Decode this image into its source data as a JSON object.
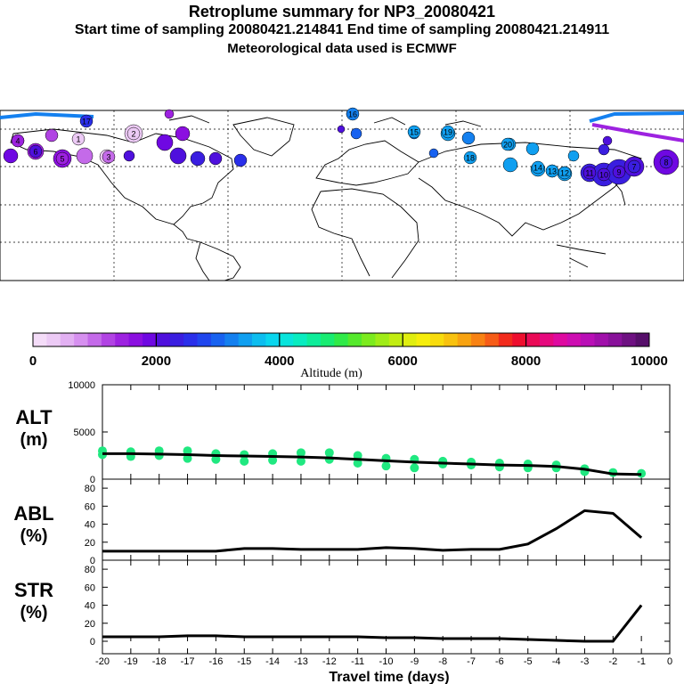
{
  "header": {
    "title": "Retroplume summary for NP3_20080421",
    "sampling": "Start time of sampling 20080421.214841      End time of sampling 20080421.214911",
    "met": "Meteorological data used is ECMWF"
  },
  "colorbar": {
    "tick_labels": [
      "0",
      "2000",
      "4000",
      "6000",
      "8000",
      "10000"
    ],
    "label": "Altitude (m)",
    "colors": [
      "#f4dcf8",
      "#eccaf5",
      "#e2b0f2",
      "#d690ef",
      "#c46ae9",
      "#b143e3",
      "#9d22e0",
      "#8b0fe0",
      "#6f08e2",
      "#4f10dd",
      "#3a1ee0",
      "#2a2fea",
      "#2046ee",
      "#1862f0",
      "#1480ef",
      "#109ff0",
      "#0dbdef",
      "#0ad6ee",
      "#08e4dc",
      "#08ecc0",
      "#0ded9a",
      "#18ec72",
      "#30ea48",
      "#55e92c",
      "#7ceb1e",
      "#a0ec17",
      "#c2ed12",
      "#e0ee0f",
      "#f6ee0c",
      "#f8dc0d",
      "#f8c20f",
      "#f8a311",
      "#f88213",
      "#f65c17",
      "#f22b1c",
      "#ee0e2e",
      "#ea0a56",
      "#e6097e",
      "#de0aa0",
      "#cd0db1",
      "#b90fb6",
      "#a010aa",
      "#88119a",
      "#6e1182",
      "#560f6a"
    ]
  },
  "map": {
    "markers": [
      {
        "label": "17",
        "color": "#2a2fea"
      },
      {
        "label": "16",
        "color": "#1480ef"
      },
      {
        "label": "15",
        "color": "#109ff0"
      },
      {
        "label": "19",
        "color": "#109ff0"
      },
      {
        "label": "20",
        "color": "#109ff0"
      },
      {
        "label": "18",
        "color": "#109ff0"
      },
      {
        "label": "14",
        "color": "#109ff0"
      },
      {
        "label": "13",
        "color": "#109ff0"
      },
      {
        "label": "12",
        "color": "#109ff0"
      },
      {
        "label": "11",
        "color": "#4f10dd"
      },
      {
        "label": "10",
        "color": "#4f10dd"
      },
      {
        "label": "9",
        "color": "#4f10dd"
      },
      {
        "label": "8",
        "color": "#4f10dd"
      },
      {
        "label": "7",
        "color": "#3a1ee0"
      },
      {
        "label": "6",
        "color": "#4f10dd"
      },
      {
        "label": "5",
        "color": "#9d22e0"
      },
      {
        "label": "4",
        "color": "#9d22e0"
      },
      {
        "label": "3",
        "color": "#c46ae9"
      },
      {
        "label": "2",
        "color": "#eccaf5"
      },
      {
        "label": "1",
        "color": "#eccaf5"
      }
    ]
  },
  "chart_data": [
    {
      "type": "scatter",
      "panel": "ALT",
      "ylabel": "ALT",
      "yunit": "(m)",
      "ylim": [
        0,
        10000
      ],
      "yticks": [
        "0",
        "5000",
        "10000"
      ],
      "x": [
        -20,
        -19,
        -18,
        -17,
        -16,
        -15,
        -14,
        -13,
        -12,
        -11,
        -10,
        -9,
        -8,
        -7,
        -6,
        -5,
        -4,
        -3,
        -2,
        -1
      ],
      "line_values": [
        2700,
        2700,
        2650,
        2600,
        2500,
        2450,
        2400,
        2350,
        2250,
        2100,
        1950,
        1800,
        1700,
        1600,
        1500,
        1450,
        1350,
        1050,
        550,
        500
      ],
      "points": [
        [
          -20,
          3000
        ],
        [
          -20,
          2600
        ],
        [
          -19,
          2900
        ],
        [
          -19,
          2400
        ],
        [
          -18,
          3000
        ],
        [
          -18,
          2500
        ],
        [
          -17,
          3000
        ],
        [
          -17,
          2200
        ],
        [
          -16,
          2700
        ],
        [
          -16,
          2100
        ],
        [
          -15,
          2600
        ],
        [
          -15,
          1900
        ],
        [
          -14,
          2700
        ],
        [
          -14,
          2000
        ],
        [
          -13,
          2800
        ],
        [
          -13,
          1900
        ],
        [
          -12,
          2800
        ],
        [
          -12,
          2100
        ],
        [
          -11,
          2500
        ],
        [
          -11,
          1700
        ],
        [
          -10,
          2200
        ],
        [
          -10,
          1400
        ],
        [
          -9,
          2100
        ],
        [
          -9,
          1200
        ],
        [
          -8,
          1900
        ],
        [
          -8,
          1600
        ],
        [
          -7,
          1800
        ],
        [
          -7,
          1500
        ],
        [
          -6,
          1700
        ],
        [
          -6,
          1300
        ],
        [
          -5,
          1600
        ],
        [
          -5,
          1200
        ],
        [
          -4,
          1500
        ],
        [
          -4,
          1200
        ],
        [
          -3,
          1100
        ],
        [
          -3,
          800
        ],
        [
          -2,
          700
        ],
        [
          -1,
          600
        ]
      ],
      "point_color": "#20e880"
    },
    {
      "type": "line",
      "panel": "ABL",
      "ylabel": "ABL",
      "yunit": "(%)",
      "ylim": [
        0,
        90
      ],
      "yticks": [
        "0",
        "20",
        "40",
        "60",
        "80"
      ],
      "x": [
        -20,
        -19,
        -18,
        -17,
        -16,
        -15,
        -14,
        -13,
        -12,
        -11,
        -10,
        -9,
        -8,
        -7,
        -6,
        -5,
        -4,
        -3,
        -2,
        -1
      ],
      "values": [
        10,
        10,
        10,
        10,
        10,
        13,
        13,
        12,
        12,
        12,
        14,
        13,
        11,
        12,
        12,
        18,
        35,
        55,
        52,
        25
      ]
    },
    {
      "type": "line",
      "panel": "STR",
      "ylabel": "STR",
      "yunit": "(%)",
      "ylim": [
        0,
        90
      ],
      "yticks": [
        "0",
        "20",
        "40",
        "60",
        "80"
      ],
      "x": [
        -20,
        -19,
        -18,
        -17,
        -16,
        -15,
        -14,
        -13,
        -12,
        -11,
        -10,
        -9,
        -8,
        -7,
        -6,
        -5,
        -4,
        -3,
        -2,
        -1
      ],
      "values": [
        5,
        5,
        5,
        6,
        6,
        5,
        5,
        5,
        5,
        5,
        4,
        4,
        3,
        3,
        3,
        2,
        1,
        0,
        0,
        40
      ]
    }
  ],
  "xaxis": {
    "label": "Travel time (days)",
    "tick_labels": [
      "-20",
      "-19",
      "-18",
      "-17",
      "-16",
      "-15",
      "-14",
      "-13",
      "-12",
      "-11",
      "-10",
      "-9",
      "-8",
      "-7",
      "-6",
      "-5",
      "-4",
      "-3",
      "-2",
      "-1",
      "0"
    ]
  }
}
